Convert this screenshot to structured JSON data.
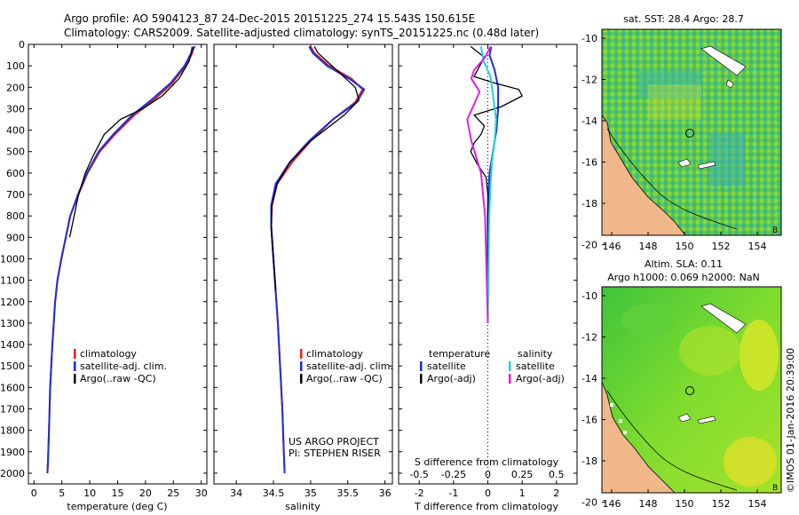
{
  "header": {
    "line1": "Argo profile: AO 5904123_87 24-Dec-2015 20151225_274 15.543S 150.615E",
    "line2": "Climatology: CARS2009. Satellite-adjusted climatology: synTS_20151225.nc (0.48d later)"
  },
  "colors": {
    "climatology": "#e0201b",
    "satellite": "#1f2ed8",
    "argo": "#000000",
    "cyan": "#22d4dc",
    "magenta": "#e020e0"
  },
  "panels": {
    "temperature": {
      "xlabel": "temperature (deg C)",
      "legend": [
        "climatology",
        "satellite-adj. clim.",
        "Argo(..raw -QC)"
      ]
    },
    "salinity": {
      "xlabel": "salinity",
      "legend": [
        "climatology",
        "satellite-adj. clim.",
        "Argo(..raw -QC)"
      ],
      "credit1": "US ARGO PROJECT",
      "credit2": "PI: STEPHEN RISER"
    },
    "difference": {
      "xlabel": "T difference from climatology",
      "s_label": "S difference from climatology",
      "temperature_head": "temperature",
      "salinity_head": "salinity",
      "legend_t": [
        "satellite",
        "Argo(-adj)"
      ],
      "legend_s": [
        "satellite",
        "Argo(-adj)"
      ]
    }
  },
  "maps": {
    "top_title": "sat. SST: 28.4 Argo: 28.7",
    "bottom_title1": "Altim. SLA: 0.11",
    "bottom_title2": "Argo h1000: 0.069 h2000: NaN",
    "lon_ticks": [
      "146",
      "148",
      "150",
      "152",
      "154"
    ],
    "lat_ticks": [
      "-10",
      "-12",
      "-14",
      "-16",
      "-18",
      "-20"
    ],
    "corner_mark": "B",
    "timestamp": "©IMOS 01-Jan-2016 20:39:00"
  },
  "chart_data": [
    {
      "type": "line",
      "name": "temperature profile",
      "xlabel": "temperature (deg C)",
      "ylabel": "",
      "xlim": [
        -1,
        31
      ],
      "ylim": [
        2050,
        0
      ],
      "xticks": [
        0,
        5,
        10,
        15,
        20,
        25,
        30
      ],
      "yticks": [
        0,
        100,
        200,
        300,
        400,
        500,
        600,
        700,
        800,
        900,
        1000,
        1100,
        1200,
        1300,
        1400,
        1500,
        1600,
        1700,
        1800,
        1900,
        2000
      ],
      "series": [
        {
          "name": "climatology",
          "color": "#e0201b",
          "x": [
            28.6,
            28.4,
            27.2,
            24.8,
            21.5,
            18.0,
            14.5,
            11.8,
            9.6,
            8.0,
            6.5,
            5.7,
            4.9,
            4.2,
            3.8,
            3.3,
            2.9,
            2.7,
            2.5,
            2.4
          ],
          "y": [
            10,
            40,
            100,
            180,
            260,
            330,
            420,
            500,
            600,
            700,
            800,
            900,
            1000,
            1100,
            1200,
            1400,
            1600,
            1800,
            1950,
            2000
          ]
        },
        {
          "name": "satellite-adj. clim.",
          "color": "#1f2ed8",
          "x": [
            28.4,
            28.2,
            27.0,
            24.5,
            21.0,
            17.6,
            14.2,
            11.6,
            9.5,
            7.9,
            6.5,
            5.7,
            4.9,
            4.2,
            3.8,
            3.3,
            2.9,
            2.7,
            2.5,
            2.4
          ],
          "y": [
            10,
            40,
            100,
            180,
            260,
            330,
            420,
            500,
            600,
            700,
            800,
            900,
            1000,
            1100,
            1200,
            1400,
            1600,
            1800,
            1950,
            2000
          ]
        },
        {
          "name": "Argo(..raw -QC)",
          "color": "#000000",
          "x": [
            28.9,
            28.3,
            27.8,
            26.0,
            23.0,
            19.5,
            15.5,
            12.6,
            10.6,
            9.2,
            8.0,
            7.2,
            6.4
          ],
          "y": [
            10,
            30,
            80,
            160,
            240,
            300,
            350,
            420,
            520,
            600,
            700,
            800,
            900
          ]
        }
      ]
    },
    {
      "type": "line",
      "name": "salinity profile",
      "xlabel": "salinity",
      "ylabel": "",
      "xlim": [
        33.7,
        36.1
      ],
      "ylim": [
        2050,
        0
      ],
      "xticks": [
        34,
        34.5,
        35,
        35.5,
        36
      ],
      "series": [
        {
          "name": "climatology",
          "color": "#e0201b",
          "x": [
            35.0,
            35.05,
            35.25,
            35.55,
            35.7,
            35.6,
            35.3,
            35.0,
            34.75,
            34.55,
            34.48,
            34.47,
            34.5,
            34.53,
            34.56,
            34.59,
            34.62,
            34.64,
            34.65
          ],
          "y": [
            10,
            40,
            100,
            160,
            210,
            270,
            350,
            450,
            550,
            650,
            750,
            850,
            1000,
            1150,
            1300,
            1500,
            1700,
            1900,
            2000
          ]
        },
        {
          "name": "satellite-adj. clim.",
          "color": "#1f2ed8",
          "x": [
            34.98,
            35.03,
            35.22,
            35.52,
            35.72,
            35.62,
            35.3,
            34.98,
            34.72,
            34.53,
            34.47,
            34.47,
            34.5,
            34.53,
            34.56,
            34.59,
            34.62,
            34.64,
            34.65
          ],
          "y": [
            10,
            40,
            100,
            160,
            210,
            270,
            350,
            450,
            550,
            650,
            750,
            850,
            1000,
            1150,
            1300,
            1500,
            1700,
            1900,
            2000
          ]
        },
        {
          "name": "Argo(..raw -QC)",
          "color": "#000000",
          "x": [
            35.05,
            35.1,
            35.35,
            35.6,
            35.65,
            35.45,
            35.0,
            34.72,
            34.55,
            34.48,
            34.47,
            34.5,
            34.53
          ],
          "y": [
            10,
            40,
            120,
            200,
            260,
            330,
            450,
            550,
            650,
            750,
            850,
            1000,
            1150
          ]
        }
      ]
    },
    {
      "type": "line",
      "name": "difference from climatology",
      "xlabel": "T difference from climatology",
      "x2label": "S difference from climatology",
      "xlim": [
        -2.6,
        2.6
      ],
      "ylim": [
        2050,
        0
      ],
      "xticks": [
        -2,
        -1,
        0,
        1,
        2
      ],
      "x2ticks": [
        -0.5,
        -0.25,
        0,
        0.25,
        0.5
      ],
      "series": [
        {
          "name": "temperature satellite",
          "color": "#1f2ed8",
          "x": [
            0.1,
            0.05,
            0.2,
            0.3,
            0.3,
            0.25,
            0.15,
            0.05,
            0.02,
            0.0,
            0.0,
            0.0
          ],
          "y": [
            10,
            50,
            120,
            200,
            300,
            400,
            500,
            600,
            700,
            800,
            1000,
            1300
          ]
        },
        {
          "name": "temperature Argo(-adj)",
          "color": "#000000",
          "x": [
            -0.5,
            -0.1,
            -0.4,
            0.2,
            0.9,
            1.0,
            0.4,
            -0.4,
            -0.1,
            -0.2,
            -0.4,
            -0.5,
            -0.3,
            -0.05,
            0.0,
            0.0,
            0.0,
            0.0
          ],
          "y": [
            10,
            60,
            150,
            180,
            210,
            240,
            290,
            330,
            380,
            420,
            460,
            500,
            560,
            620,
            700,
            850,
            1100,
            1290
          ]
        },
        {
          "name": "salinity satellite",
          "color": "#22d4dc",
          "x": [
            -0.05,
            -0.03,
            0.02,
            0.04,
            0.06,
            0.05,
            0.03,
            0.02,
            0.01,
            0.0
          ],
          "y": [
            10,
            80,
            150,
            250,
            350,
            450,
            550,
            650,
            800,
            1300
          ]
        },
        {
          "name": "salinity Argo(-adj)",
          "color": "#e020e0",
          "x": [
            0.02,
            -0.02,
            -0.1,
            -0.12,
            -0.06,
            -0.1,
            -0.15,
            -0.12,
            -0.05,
            -0.02,
            0.0
          ],
          "y": [
            10,
            60,
            120,
            160,
            220,
            280,
            350,
            450,
            600,
            800,
            1300
          ]
        }
      ]
    }
  ]
}
